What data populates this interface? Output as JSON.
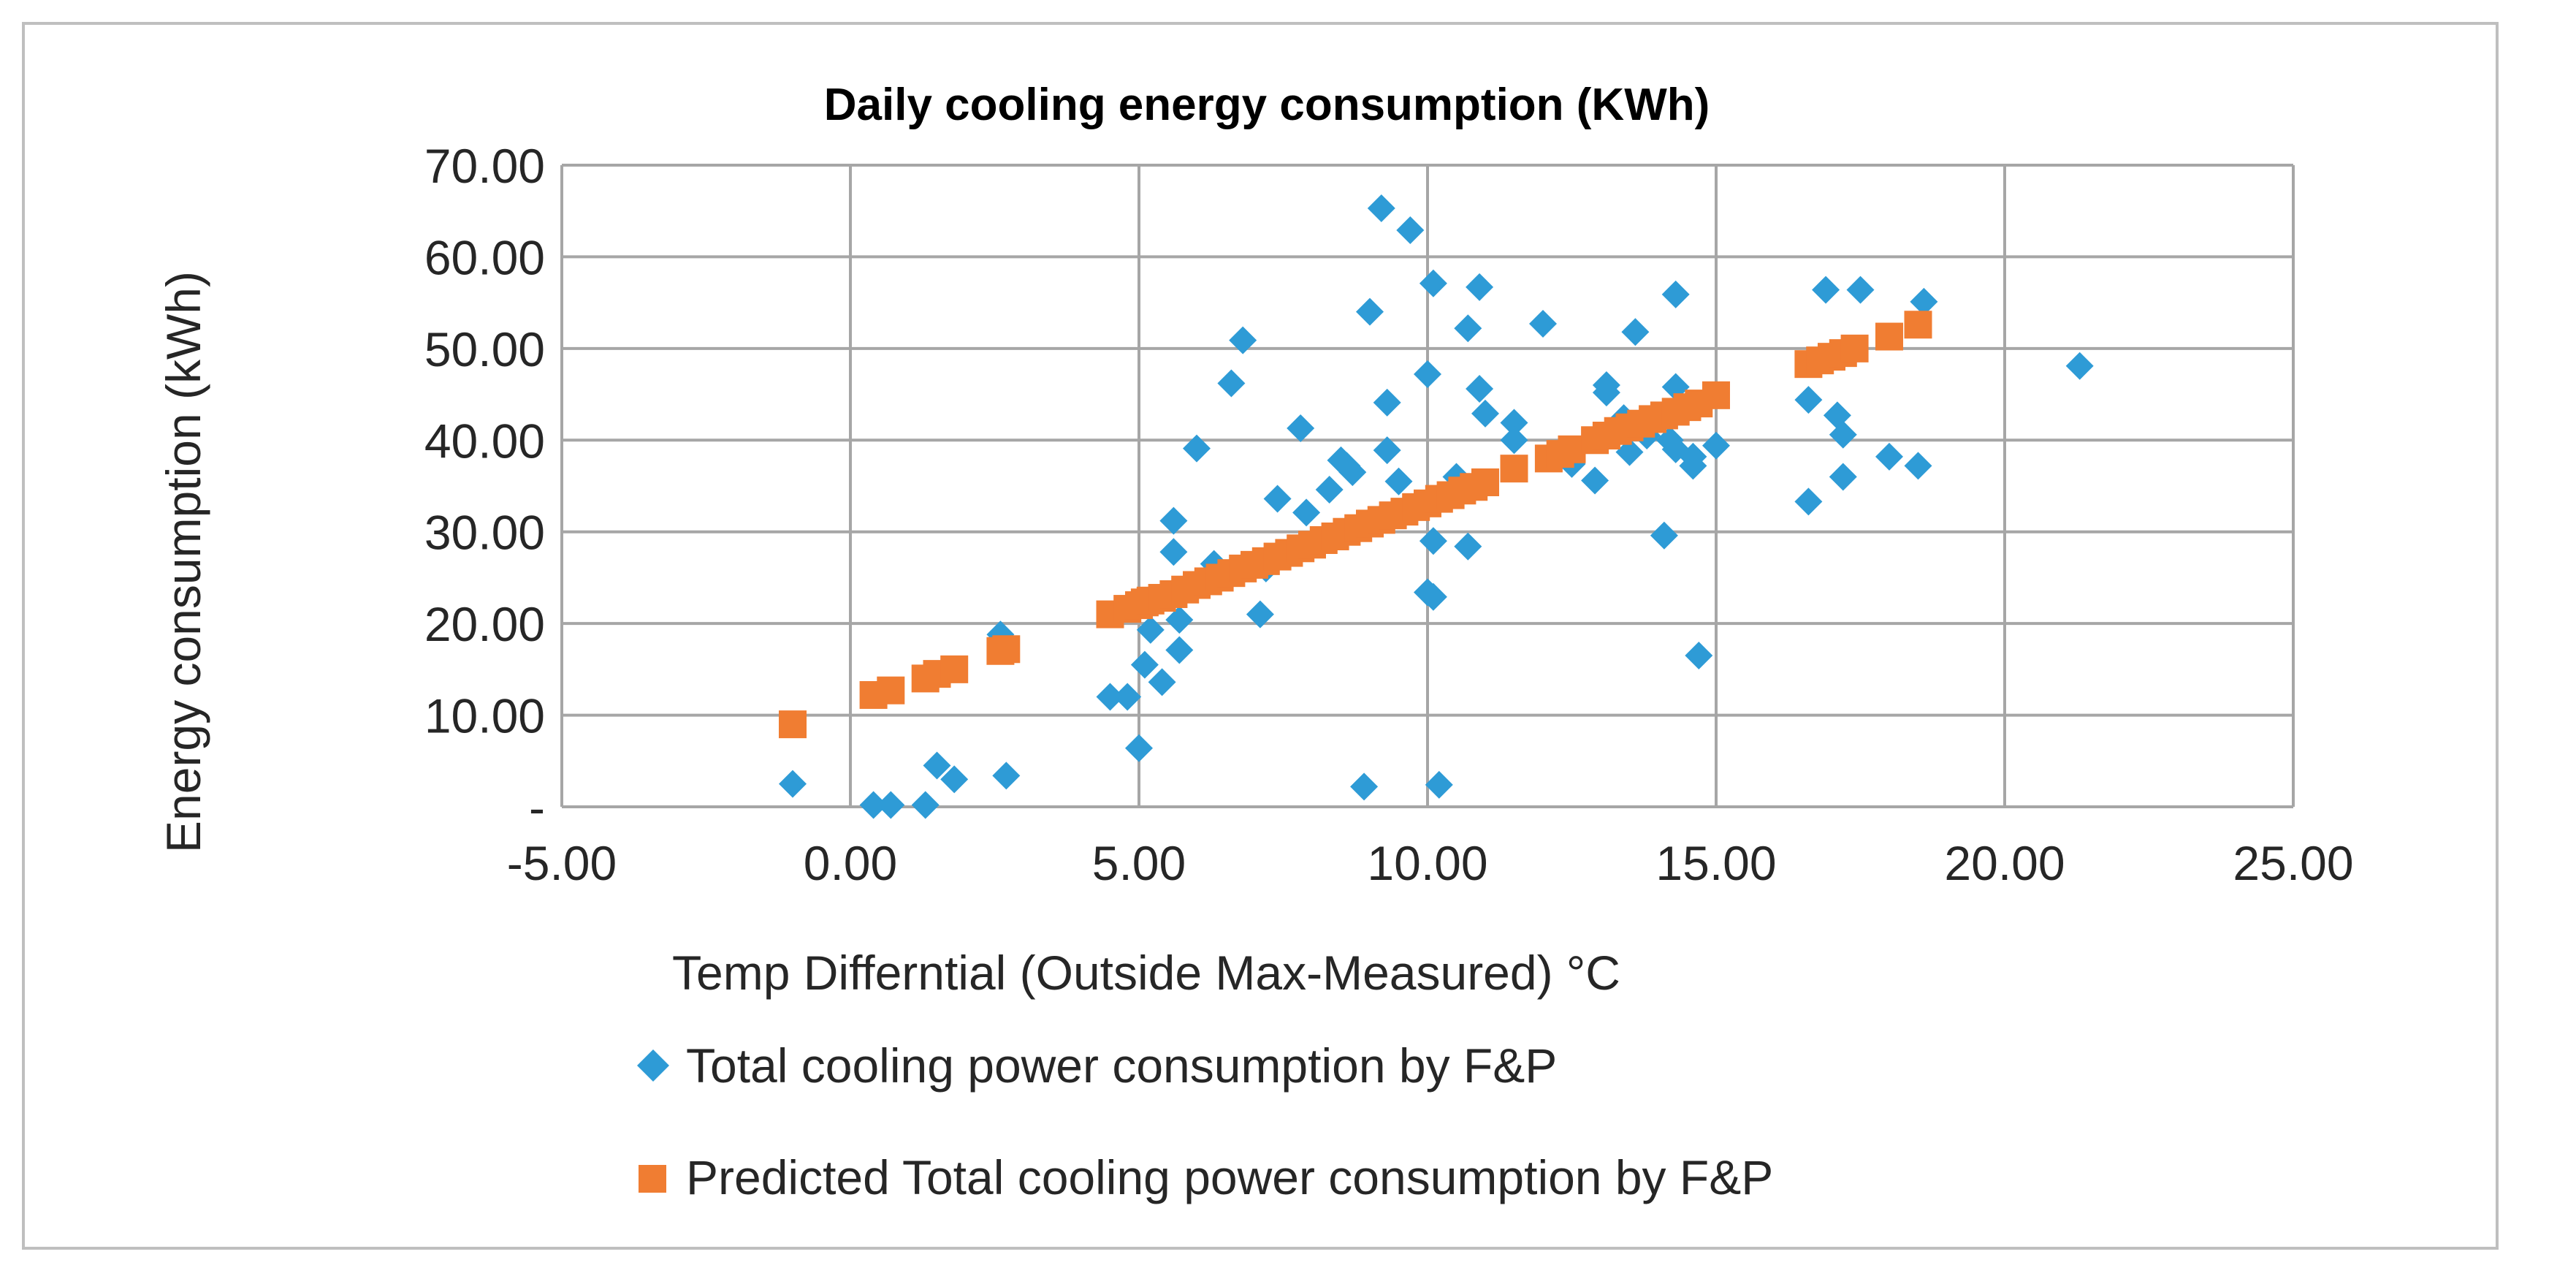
{
  "colors": {
    "measured": "#2e9bd6",
    "predicted": "#f07d32",
    "grid": "#a6a6a6",
    "border": "#bfbfbf"
  },
  "legend": {
    "measured_label": "Total cooling power consumption by F&P",
    "predicted_label": "Predicted Total cooling power consumption by F&P",
    "measured_icon": "diamond-marker-icon",
    "predicted_icon": "square-marker-icon"
  },
  "chart_data": {
    "type": "scatter",
    "title": "Daily cooling energy consumption (KWh)",
    "xlabel": "Temp Differntial (Outside Max-Measured) °C",
    "ylabel": "Energy consumption (kWh)",
    "xlim": [
      -5,
      25
    ],
    "ylim": [
      0,
      70
    ],
    "x_ticks": [
      -5,
      0,
      5,
      10,
      15,
      20,
      25
    ],
    "x_tick_labels": [
      "-5.00",
      "0.00",
      "5.00",
      "10.00",
      "15.00",
      "20.00",
      "25.00"
    ],
    "y_ticks": [
      0,
      10,
      20,
      30,
      40,
      50,
      60,
      70
    ],
    "y_tick_labels": [
      "-",
      "10.00",
      "20.00",
      "30.00",
      "40.00",
      "50.00",
      "60.00",
      "70.00"
    ],
    "grid": true,
    "legend_position": "bottom",
    "series": [
      {
        "name": "Total cooling power consumption by F&P",
        "marker": "diamond",
        "points": [
          [
            -1.0,
            2.5
          ],
          [
            0.4,
            0.2
          ],
          [
            0.7,
            0.2
          ],
          [
            1.3,
            0.2
          ],
          [
            1.5,
            4.5
          ],
          [
            1.8,
            3.0
          ],
          [
            2.6,
            18.8
          ],
          [
            2.7,
            3.4
          ],
          [
            4.5,
            12.0
          ],
          [
            4.8,
            12.0
          ],
          [
            5.0,
            6.4
          ],
          [
            5.1,
            15.5
          ],
          [
            5.2,
            19.3
          ],
          [
            5.4,
            13.6
          ],
          [
            5.6,
            31.2
          ],
          [
            5.6,
            27.8
          ],
          [
            5.7,
            20.4
          ],
          [
            5.7,
            17.1
          ],
          [
            6.0,
            39.1
          ],
          [
            6.3,
            26.5
          ],
          [
            6.6,
            46.2
          ],
          [
            6.8,
            50.9
          ],
          [
            7.1,
            21.0
          ],
          [
            7.2,
            26.0
          ],
          [
            7.4,
            33.6
          ],
          [
            7.8,
            41.3
          ],
          [
            7.9,
            32.1
          ],
          [
            8.0,
            28.5
          ],
          [
            8.3,
            34.6
          ],
          [
            8.5,
            37.8
          ],
          [
            8.6,
            37.2
          ],
          [
            8.7,
            36.5
          ],
          [
            8.9,
            2.2
          ],
          [
            9.0,
            54.0
          ],
          [
            9.2,
            65.3
          ],
          [
            9.3,
            44.1
          ],
          [
            9.3,
            38.9
          ],
          [
            9.5,
            35.5
          ],
          [
            9.7,
            62.9
          ],
          [
            10.0,
            47.2
          ],
          [
            10.0,
            23.4
          ],
          [
            10.1,
            57.1
          ],
          [
            10.1,
            22.9
          ],
          [
            10.1,
            29.0
          ],
          [
            10.2,
            2.4
          ],
          [
            10.5,
            36.0
          ],
          [
            10.7,
            52.2
          ],
          [
            10.7,
            28.4
          ],
          [
            10.9,
            56.7
          ],
          [
            10.9,
            45.6
          ],
          [
            11.0,
            42.9
          ],
          [
            11.5,
            41.9
          ],
          [
            11.5,
            40.0
          ],
          [
            12.0,
            52.7
          ],
          [
            12.5,
            37.4
          ],
          [
            12.9,
            35.6
          ],
          [
            13.1,
            46.0
          ],
          [
            13.1,
            45.2
          ],
          [
            13.4,
            42.4
          ],
          [
            13.5,
            38.7
          ],
          [
            13.6,
            51.8
          ],
          [
            13.8,
            40.5
          ],
          [
            14.1,
            29.6
          ],
          [
            14.2,
            40.0
          ],
          [
            14.3,
            55.9
          ],
          [
            14.3,
            45.8
          ],
          [
            14.3,
            39.0
          ],
          [
            14.6,
            38.2
          ],
          [
            14.6,
            37.2
          ],
          [
            14.7,
            16.5
          ],
          [
            15.0,
            39.4
          ],
          [
            16.6,
            44.4
          ],
          [
            16.6,
            33.3
          ],
          [
            16.9,
            56.4
          ],
          [
            17.1,
            42.7
          ],
          [
            17.2,
            40.6
          ],
          [
            17.2,
            36.0
          ],
          [
            17.5,
            56.4
          ],
          [
            18.0,
            38.2
          ],
          [
            18.5,
            37.2
          ],
          [
            18.6,
            55.1
          ],
          [
            21.3,
            48.1
          ]
        ]
      },
      {
        "name": "Predicted Total cooling power consumption by F&P",
        "marker": "square",
        "points": [
          [
            -1.0,
            9.0
          ],
          [
            0.4,
            12.2
          ],
          [
            0.7,
            12.7
          ],
          [
            1.3,
            14.0
          ],
          [
            1.5,
            14.5
          ],
          [
            1.8,
            15.0
          ],
          [
            2.6,
            17.0
          ],
          [
            2.7,
            17.2
          ],
          [
            4.5,
            21.0
          ],
          [
            4.8,
            21.6
          ],
          [
            5.0,
            22.0
          ],
          [
            5.1,
            22.3
          ],
          [
            5.2,
            22.5
          ],
          [
            5.4,
            22.8
          ],
          [
            5.6,
            23.2
          ],
          [
            5.8,
            23.7
          ],
          [
            6.0,
            24.2
          ],
          [
            6.2,
            24.6
          ],
          [
            6.4,
            25.0
          ],
          [
            6.6,
            25.5
          ],
          [
            6.8,
            26.0
          ],
          [
            7.0,
            26.4
          ],
          [
            7.2,
            26.8
          ],
          [
            7.4,
            27.3
          ],
          [
            7.6,
            27.7
          ],
          [
            7.8,
            28.2
          ],
          [
            8.0,
            28.6
          ],
          [
            8.2,
            29.1
          ],
          [
            8.4,
            29.5
          ],
          [
            8.6,
            30.0
          ],
          [
            8.8,
            30.4
          ],
          [
            9.0,
            30.9
          ],
          [
            9.2,
            31.3
          ],
          [
            9.4,
            31.8
          ],
          [
            9.6,
            32.2
          ],
          [
            9.8,
            32.7
          ],
          [
            10.0,
            33.1
          ],
          [
            10.2,
            33.6
          ],
          [
            10.4,
            34.0
          ],
          [
            10.6,
            34.5
          ],
          [
            10.8,
            34.9
          ],
          [
            11.0,
            35.4
          ],
          [
            11.5,
            36.9
          ],
          [
            12.1,
            38.0
          ],
          [
            12.3,
            38.5
          ],
          [
            12.5,
            39.0
          ],
          [
            12.9,
            40.0
          ],
          [
            13.1,
            40.5
          ],
          [
            13.3,
            41.0
          ],
          [
            13.5,
            41.4
          ],
          [
            13.7,
            41.8
          ],
          [
            13.9,
            42.3
          ],
          [
            14.1,
            42.7
          ],
          [
            14.3,
            43.1
          ],
          [
            14.5,
            43.6
          ],
          [
            14.7,
            44.0
          ],
          [
            15.0,
            44.9
          ],
          [
            16.6,
            48.3
          ],
          [
            16.8,
            48.7
          ],
          [
            17.0,
            49.1
          ],
          [
            17.2,
            49.5
          ],
          [
            17.4,
            50.0
          ],
          [
            18.0,
            51.3
          ],
          [
            18.5,
            52.6
          ]
        ]
      }
    ]
  }
}
